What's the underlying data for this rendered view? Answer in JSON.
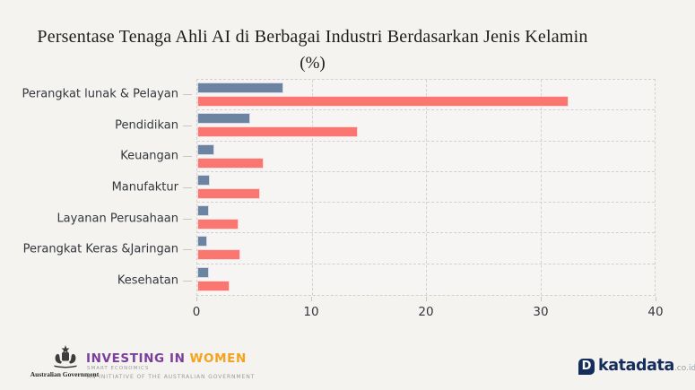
{
  "title": {
    "line1": "Persentase Tenaga Ahli AI di Berbagai Industri Berdasarkan Jenis Kelamin",
    "line2": "(%)"
  },
  "chart_data": {
    "type": "bar",
    "orientation": "horizontal",
    "title": "Persentase Tenaga Ahli AI di Berbagai Industri Berdasarkan Jenis Kelamin (%)",
    "categories": [
      "Perangkat lunak & Pelayan",
      "Pendidikan",
      "Keuangan",
      "Manufaktur",
      "Layanan Perusahaan",
      "Perangkat Keras &Jaringan",
      "Kesehatan"
    ],
    "series": [
      {
        "name": "blue",
        "color": "#6d83a2",
        "values": [
          7.5,
          4.6,
          1.5,
          1.1,
          1,
          0.9,
          1
        ]
      },
      {
        "name": "red",
        "color": "#f97671",
        "values": [
          32.5,
          14,
          5.8,
          5.5,
          3.6,
          3.8,
          2.8
        ]
      }
    ],
    "xlabel": "",
    "ylabel": "",
    "unit": "%",
    "xlim": [
      0,
      40
    ],
    "xticks": [
      0,
      10,
      20,
      30,
      40
    ],
    "grid": "dashed",
    "legend": "none"
  },
  "footer": {
    "aus_gov_label": "Australian Government",
    "investing_in": "INVESTING IN",
    "women": "WOMEN",
    "smart_economics": "SMART ECONOMICS",
    "initiative": "AN INITIATIVE OF THE AUSTRALIAN GOVERNMENT",
    "katadata": "katadata",
    "katadata_suffix": ".co.id",
    "katadata_icon_letter": "D"
  },
  "colors": {
    "background": "#f4f3f0",
    "bar_blue": "#6d83a2",
    "bar_red": "#f97671",
    "gridline": "#d2d1ce",
    "investing_purple": "#7b3f9b",
    "women_orange": "#f5a31e",
    "katadata_navy": "#142d5a"
  }
}
